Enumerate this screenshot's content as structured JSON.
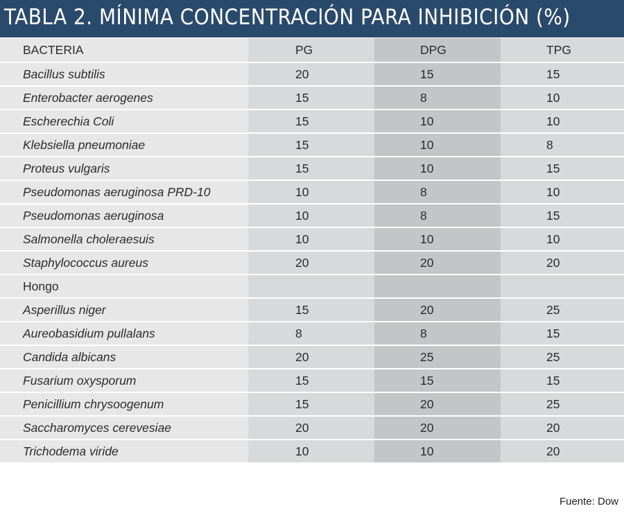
{
  "title": "TABLA 2. MÍNIMA CONCENTRACIÓN PARA INHIBICIÓN (%)",
  "table": {
    "headers": [
      "BACTERIA",
      "PG",
      "DPG",
      "TPG"
    ],
    "rows": [
      {
        "name": "Bacillus subtilis",
        "italic": true,
        "pg": "20",
        "dpg": "15",
        "tpg": "15"
      },
      {
        "name": "Enterobacter aerogenes",
        "italic": true,
        "pg": "15",
        "dpg": "8",
        "tpg": "10"
      },
      {
        "name": "Escherechia Coli",
        "italic": true,
        "pg": "15",
        "dpg": "10",
        "tpg": "10"
      },
      {
        "name": "Klebsiella pneumoniae",
        "italic": true,
        "pg": "15",
        "dpg": "10",
        "tpg": "8"
      },
      {
        "name": "Proteus vulgaris",
        "italic": true,
        "pg": "15",
        "dpg": "10",
        "tpg": "15"
      },
      {
        "name": "Pseudomonas aeruginosa PRD-10",
        "italic": true,
        "pg": "10",
        "dpg": "8",
        "tpg": "10"
      },
      {
        "name": "Pseudomonas aeruginosa",
        "italic": true,
        "pg": "10",
        "dpg": "8",
        "tpg": "15"
      },
      {
        "name": "Salmonella choleraesuis",
        "italic": true,
        "pg": "10",
        "dpg": "10",
        "tpg": "10"
      },
      {
        "name": "Staphylococcus aureus",
        "italic": true,
        "pg": "20",
        "dpg": "20",
        "tpg": "20"
      },
      {
        "name": "Hongo",
        "italic": false,
        "pg": "",
        "dpg": "",
        "tpg": ""
      },
      {
        "name": "Asperillus niger",
        "italic": true,
        "pg": "15",
        "dpg": "20",
        "tpg": "25"
      },
      {
        "name": "Aureobasidium pullalans",
        "italic": true,
        "pg": "8",
        "dpg": "8",
        "tpg": "15"
      },
      {
        "name": "Candida albicans",
        "italic": true,
        "pg": "20",
        "dpg": "25",
        "tpg": "25"
      },
      {
        "name": "Fusarium oxysporum",
        "italic": true,
        "pg": "15",
        "dpg": "15",
        "tpg": "15"
      },
      {
        "name": "Penicillium chrysoogenum",
        "italic": true,
        "pg": "15",
        "dpg": "20",
        "tpg": "25"
      },
      {
        "name": "Saccharomyces cerevesiae",
        "italic": true,
        "pg": "20",
        "dpg": "20",
        "tpg": "20"
      },
      {
        "name": "Trichodema viride",
        "italic": true,
        "pg": "10",
        "dpg": "10",
        "tpg": "20"
      }
    ]
  },
  "footer": "Fuente: Dow",
  "colors": {
    "title_bar": "#2a4a6c",
    "name_column": "#e7e7e8",
    "pg_column": "#d8d9da",
    "dpg_column": "#c4c5c6",
    "tpg_column": "#d8d9da"
  }
}
